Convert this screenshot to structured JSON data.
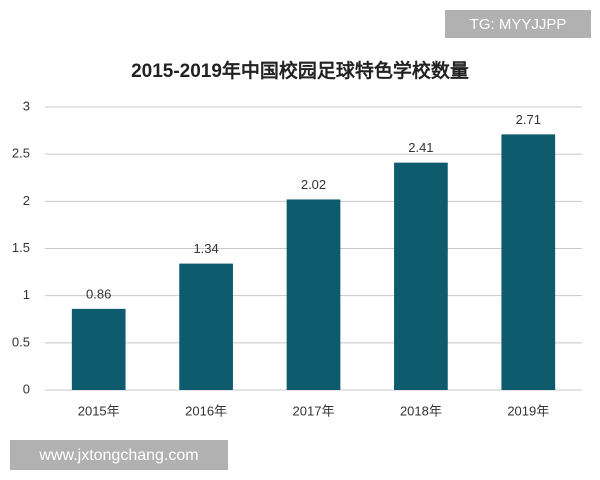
{
  "chart_data": {
    "type": "bar",
    "title": "2015-2019年中国校园足球特色学校数量",
    "categories": [
      "2015年",
      "2016年",
      "2017年",
      "2018年",
      "2019年"
    ],
    "values": [
      0.86,
      1.34,
      2.02,
      2.41,
      2.71
    ],
    "color": "#0f5b6e",
    "ylim": [
      0,
      3
    ],
    "yticks": [
      0,
      0.5,
      1,
      1.5,
      2,
      2.5,
      3
    ],
    "grid": true
  },
  "watermark_top": "TG: MYYJJPP",
  "watermark_bottom": "www.jxtongchang.com"
}
